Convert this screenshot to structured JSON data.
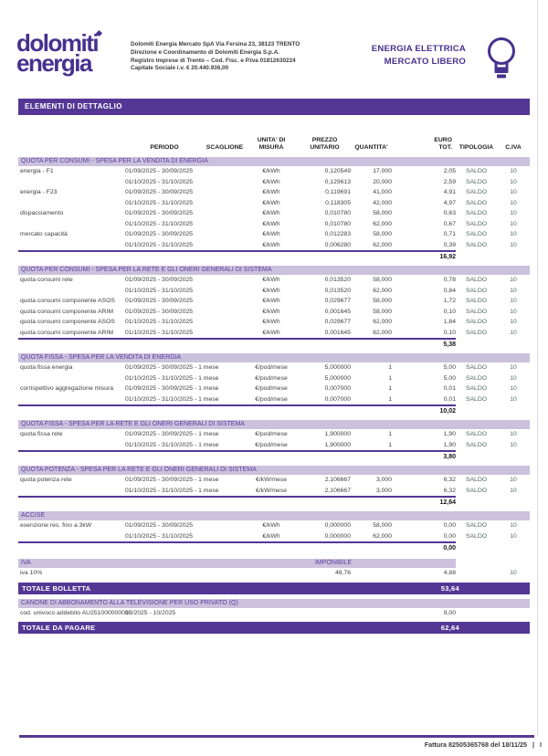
{
  "colors": {
    "brand_purple": "#543795",
    "logo_purple": "#46318e",
    "band_lavender": "#cbc1dd",
    "band_text": "#5a3e9b",
    "body_text": "#3f3f42",
    "tipologia_text": "#4f695e"
  },
  "header": {
    "logo_line1": "dolomiti",
    "logo_line2": "energia",
    "company_info": [
      "Dolomiti Energia Mercato SpA Via Fersina 23, 38123 TRENTO",
      "Direzione e Coordinamento di Dolomiti Energia S.p.A.",
      "Registro Imprese di Trento – Cod. Fisc. e P.Iva 01812630224",
      "Capitale Sociale i.v. €  20.440.936,00"
    ],
    "market_line1": "ENERGIA ELETTRICA",
    "market_line2": "MERCATO LIBERO",
    "bulb_icon": "lightbulb-icon"
  },
  "section_bar": "ELEMENTI DI DETTAGLIO",
  "table": {
    "columns": {
      "periodo": "PERIODO",
      "scaglione": "SCAGLIONE",
      "unita": "UNITA' DI\nMISURA",
      "prezzo": "PREZZO\nUNITARIO",
      "quantita": "QUANTITA'",
      "euro": "EURO\nTOT.",
      "tipologia": "TIPOLOGIA",
      "civa": "C.IVA"
    },
    "sections": [
      {
        "title": "QUOTA PER CONSUMI - SPESA PER LA VENDITA DI  ENERGIA",
        "rows": [
          [
            "energia - F1",
            "01/09/2025 - 30/09/2025",
            "€/kWh",
            "0,120549",
            "17,000",
            "2,05",
            "SALDO",
            "10"
          ],
          [
            "",
            "01/10/2025 - 31/10/2025",
            "€/kWh",
            "0,129613",
            "20,000",
            "2,59",
            "SALDO",
            "10"
          ],
          [
            "energia - F23",
            "01/09/2025 - 30/09/2025",
            "€/kWh",
            "0,119691",
            "41,000",
            "4,91",
            "SALDO",
            "10"
          ],
          [
            "",
            "01/10/2025 - 31/10/2025",
            "€/kWh",
            "0,118305",
            "42,000",
            "4,97",
            "SALDO",
            "10"
          ],
          [
            "dispacciamento",
            "01/09/2025 - 30/09/2025",
            "€/kWh",
            "0,010780",
            "58,000",
            "0,63",
            "SALDO",
            "10"
          ],
          [
            "",
            "01/10/2025 - 31/10/2025",
            "€/kWh",
            "0,010780",
            "62,000",
            "0,67",
            "SALDO",
            "10"
          ],
          [
            "mercato capacità",
            "01/09/2025 - 30/09/2025",
            "€/kWh",
            "0,012283",
            "58,000",
            "0,71",
            "SALDO",
            "10"
          ],
          [
            "",
            "01/10/2025 - 31/10/2025",
            "€/kWh",
            "0,006280",
            "62,000",
            "0,39",
            "SALDO",
            "10"
          ]
        ],
        "subtotal": "16,92"
      },
      {
        "title": "QUOTA PER CONSUMI - SPESA PER LA RETE E GLI ONERI GENERALI DI SISTEMA",
        "rows": [
          [
            "quota consumi rete",
            "01/09/2025 - 30/09/2025",
            "€/kWh",
            "0,013520",
            "58,000",
            "0,78",
            "SALDO",
            "10"
          ],
          [
            "",
            "01/10/2025 - 31/10/2025",
            "€/kWh",
            "0,013520",
            "62,000",
            "0,84",
            "SALDO",
            "10"
          ],
          [
            "quota consumi componente ASOS",
            "01/09/2025 - 30/09/2025",
            "€/kWh",
            "0,029677",
            "58,000",
            "1,72",
            "SALDO",
            "10"
          ],
          [
            "quota consumi componente ARIM",
            "01/09/2025 - 30/09/2025",
            "€/kWh",
            "0,001645",
            "58,000",
            "0,10",
            "SALDO",
            "10"
          ],
          [
            "quota consumi componente ASOS",
            "01/10/2025 - 31/10/2025",
            "€/kWh",
            "0,029677",
            "62,000",
            "1,84",
            "SALDO",
            "10"
          ],
          [
            "quota consumi componente ARIM",
            "01/10/2025 - 31/10/2025",
            "€/kWh",
            "0,001645",
            "62,000",
            "0,10",
            "SALDO",
            "10"
          ]
        ],
        "subtotal": "5,38"
      },
      {
        "title": "QUOTA FISSA - SPESA PER LA VENDITA DI  ENERGIA",
        "rows": [
          [
            "quota fissa energia",
            "01/09/2025 - 30/09/2025 - 1 mese",
            "€/pod/mese",
            "5,000000",
            "1",
            "5,00",
            "SALDO",
            "10"
          ],
          [
            "",
            "01/10/2025 - 31/10/2025 - 1 mese",
            "€/pod/mese",
            "5,000000",
            "1",
            "5,00",
            "SALDO",
            "10"
          ],
          [
            "corrispettivo aggregazione misura",
            "01/09/2025 - 30/09/2025 - 1 mese",
            "€/pod/mese",
            "0,007000",
            "1",
            "0,01",
            "SALDO",
            "10"
          ],
          [
            "",
            "01/10/2025 - 31/10/2025 - 1 mese",
            "€/pod/mese",
            "0,007000",
            "1",
            "0,01",
            "SALDO",
            "10"
          ]
        ],
        "subtotal": "10,02"
      },
      {
        "title": "QUOTA FISSA - SPESA PER LA RETE E GLI ONERI GENERALI DI SISTEMA",
        "rows": [
          [
            "quota fissa rete",
            "01/09/2025 - 30/09/2025 - 1 mese",
            "€/pod/mese",
            "1,900000",
            "1",
            "1,90",
            "SALDO",
            "10"
          ],
          [
            "",
            "01/10/2025 - 31/10/2025 - 1 mese",
            "€/pod/mese",
            "1,900000",
            "1",
            "1,90",
            "SALDO",
            "10"
          ]
        ],
        "subtotal": "3,80"
      },
      {
        "title": "QUOTA POTENZA - SPESA PER LA RETE E GLI ONERI GENERALI DI SISTEMA",
        "rows": [
          [
            "quota potenza rete",
            "01/09/2025 - 30/09/2025 - 1 mese",
            "€/kW/mese",
            "2,106667",
            "3,000",
            "6,32",
            "SALDO",
            "10"
          ],
          [
            "",
            "01/10/2025 - 31/10/2025 - 1 mese",
            "€/kW/mese",
            "2,106667",
            "3,000",
            "6,32",
            "SALDO",
            "10"
          ]
        ],
        "subtotal": "12,64"
      },
      {
        "title": "ACCISE",
        "rows": [
          [
            "esenzione res. fino a 3kW",
            "01/09/2025 - 30/09/2025",
            "€/kWh",
            "0,000000",
            "58,000",
            "0,00",
            "SALDO",
            "10"
          ],
          [
            "",
            "01/10/2025 - 31/10/2025",
            "€/kWh",
            "0,000000",
            "62,000",
            "0,00",
            "SALDO",
            "10"
          ]
        ],
        "subtotal": "0,00"
      }
    ]
  },
  "iva": {
    "label": "IVA",
    "imponibile_label": "IMPONIBILE",
    "row": {
      "label": "iva 10%",
      "imponibile": "48,76",
      "euro": "4,88",
      "civa": "10"
    }
  },
  "totale_bolletta": {
    "label": "TOTALE BOLLETTA",
    "value": "53,64"
  },
  "canone": {
    "title": "CANONE DI ABBONAMENTO ALLA TELEVISIONE PER USO PRIVATO (Q)",
    "row": {
      "label": "cod. univoco addebito AU251000000000",
      "periodo": "10/2025 - 10/2025",
      "euro": "9,00"
    }
  },
  "totale_da_pagare": {
    "label": "TOTALE  DA PAGARE",
    "value": "62,64"
  },
  "footer": {
    "invoice": "Fattura 82505365768 del 18/11/25",
    "sep": "|",
    "page": "I"
  }
}
